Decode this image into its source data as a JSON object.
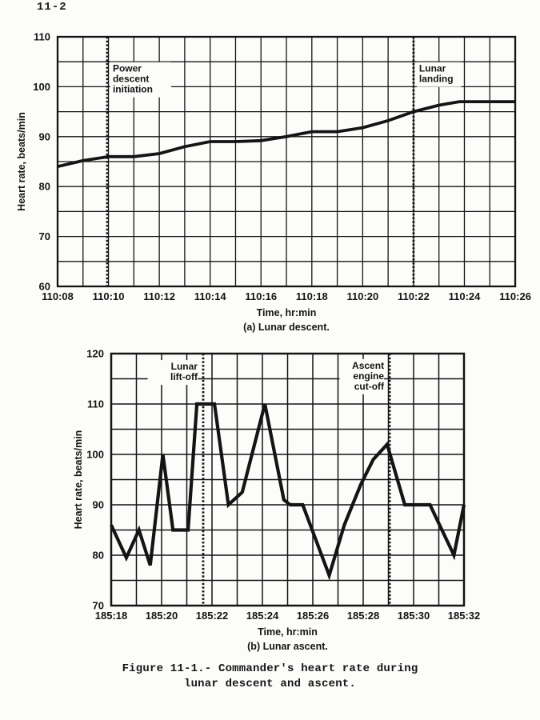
{
  "page": {
    "number": "11-2",
    "caption_line1": "Figure 11-1.- Commander's heart rate during",
    "caption_line2": "lunar descent and ascent."
  },
  "colors": {
    "ink": "#141414",
    "paper": "#fcfcfa"
  },
  "chart_data": [
    {
      "id": "descent",
      "type": "line",
      "title": "(a) Lunar descent.",
      "xlabel": "Time, hr:min",
      "ylabel": "Heart rate, beats/min",
      "x_tick_labels": [
        "110:08",
        "110:10",
        "110:12",
        "110:14",
        "110:16",
        "110:18",
        "110:20",
        "110:22",
        "110:24",
        "110:26"
      ],
      "x_tick_minutes": [
        0,
        2,
        4,
        6,
        8,
        10,
        12,
        14,
        16,
        18
      ],
      "x_range_minutes": [
        0,
        18
      ],
      "ylim": [
        60,
        110
      ],
      "y_ticks": [
        60,
        70,
        80,
        90,
        100,
        110
      ],
      "grid_x_step_minutes": 1,
      "grid_y_step_bpm": 5,
      "grid": true,
      "legend": "none",
      "series": [
        {
          "name": "commander-heart-rate",
          "points": [
            [
              0,
              84
            ],
            [
              1,
              85.2
            ],
            [
              2,
              86
            ],
            [
              3,
              86
            ],
            [
              4,
              86.6
            ],
            [
              5,
              88
            ],
            [
              6,
              89
            ],
            [
              7,
              89
            ],
            [
              8,
              89.2
            ],
            [
              9,
              90
            ],
            [
              10,
              91
            ],
            [
              11,
              91
            ],
            [
              12,
              91.8
            ],
            [
              13,
              93.2
            ],
            [
              14,
              95
            ],
            [
              15,
              96.3
            ],
            [
              15.8,
              97
            ],
            [
              18,
              97
            ]
          ]
        }
      ],
      "annotations": [
        {
          "label": "Power descent initiation",
          "lines": [
            "Power",
            "descent",
            "initiation"
          ],
          "x_minutes": 1.95,
          "side": "left",
          "top_value": 104.6
        },
        {
          "label": "Lunar landing",
          "lines": [
            "Lunar",
            "landing"
          ],
          "x_minutes": 14.0,
          "side": "left",
          "top_value": 104.6
        }
      ]
    },
    {
      "id": "ascent",
      "type": "line",
      "title": "(b) Lunar ascent.",
      "xlabel": "Time, hr:min",
      "ylabel": "Heart rate, beats/min",
      "x_tick_labels": [
        "185:18",
        "185:20",
        "185:22",
        "185:24",
        "185:26",
        "185:28",
        "185:30",
        "185:32"
      ],
      "x_tick_minutes": [
        0,
        2,
        4,
        6,
        8,
        10,
        12,
        14
      ],
      "x_range_minutes": [
        0,
        14
      ],
      "ylim": [
        70,
        120
      ],
      "y_ticks": [
        70,
        80,
        90,
        100,
        110,
        120
      ],
      "grid_x_step_minutes": 1,
      "grid_y_step_bpm": 5,
      "grid": true,
      "legend": "none",
      "series": [
        {
          "name": "commander-heart-rate",
          "points": [
            [
              0,
              86
            ],
            [
              0.6,
              79.5
            ],
            [
              1.1,
              85
            ],
            [
              1.55,
              78
            ],
            [
              2.05,
              100
            ],
            [
              2.45,
              85
            ],
            [
              3.05,
              85
            ],
            [
              3.4,
              110
            ],
            [
              4.1,
              110
            ],
            [
              4.65,
              90
            ],
            [
              5.2,
              92.5
            ],
            [
              6.1,
              110
            ],
            [
              6.85,
              91
            ],
            [
              7.1,
              90
            ],
            [
              7.6,
              90
            ],
            [
              8.65,
              76
            ],
            [
              9.25,
              86
            ],
            [
              9.9,
              94
            ],
            [
              10.4,
              99
            ],
            [
              10.95,
              102
            ],
            [
              11.65,
              90
            ],
            [
              12.65,
              90
            ],
            [
              13.6,
              80
            ],
            [
              14,
              90
            ]
          ]
        }
      ],
      "annotations": [
        {
          "label": "Lunar lift-off",
          "lines": [
            "Lunar",
            "lift-off"
          ],
          "x_minutes": 3.65,
          "side": "right",
          "top_value": 118.4
        },
        {
          "label": "Ascent engine cut-off",
          "lines": [
            "Ascent",
            "engine",
            "cut-off"
          ],
          "x_minutes": 11.05,
          "side": "right",
          "top_value": 118.6
        }
      ]
    }
  ]
}
